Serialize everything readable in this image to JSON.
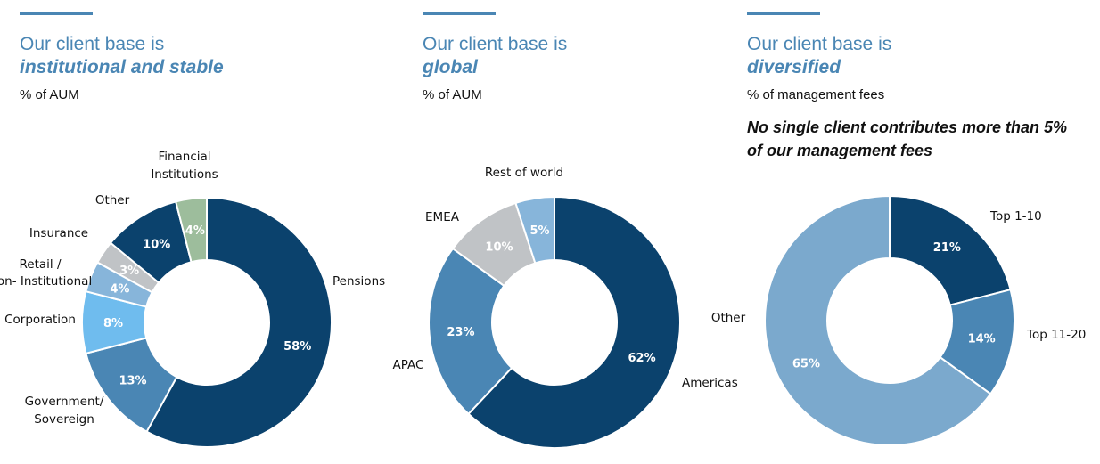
{
  "panels": [
    {
      "title_line1": "Our client base is",
      "title_line2": "institutional and stable",
      "subtitle": "% of AUM"
    },
    {
      "title_line1": "Our client base is",
      "title_line2": "global",
      "subtitle": "% of AUM"
    },
    {
      "title_line1": "Our client base is",
      "title_line2": "diversified",
      "subtitle": "% of management fees",
      "note_parts": [
        "No single client contributes more than ",
        "5%",
        " of our management fees"
      ]
    }
  ],
  "colors": {
    "accent": "#4a86b4",
    "dark_navy": "#0b426d",
    "mid_blue": "#4a86b4",
    "light_blue": "#6fbcee",
    "pale_blue": "#87b5da",
    "gray": "#c0c3c6",
    "sage": "#9dbd9c"
  },
  "chart_data": [
    {
      "type": "pie",
      "title": "Our client base is institutional and stable",
      "unit": "% of AUM",
      "labels": [
        "Pensions",
        "Government/ Sovereign",
        "Corporation",
        "Retail / Non- Institutional",
        "Insurance",
        "Other",
        "Financial Institutions"
      ],
      "values": [
        58,
        13,
        8,
        4,
        3,
        10,
        4
      ],
      "value_labels": [
        "58%",
        "13%",
        "8%",
        "4%",
        "3%",
        "10%",
        "4%"
      ],
      "colors": [
        "#0b426d",
        "#4a86b4",
        "#6fbcee",
        "#87b5da",
        "#c0c3c6",
        "#0b426d",
        "#9dbd9c"
      ]
    },
    {
      "type": "pie",
      "title": "Our client base is global",
      "unit": "% of AUM",
      "labels": [
        "Americas",
        "APAC",
        "EMEA",
        "Rest of world"
      ],
      "values": [
        62,
        23,
        10,
        5
      ],
      "value_labels": [
        "62%",
        "23%",
        "10%",
        "5%"
      ],
      "colors": [
        "#0b426d",
        "#4a86b4",
        "#c0c3c6",
        "#87b5da"
      ]
    },
    {
      "type": "pie",
      "title": "Our client base is diversified",
      "unit": "% of management fees",
      "labels": [
        "Top 1-10",
        "Top 11-20",
        "Other"
      ],
      "values": [
        21,
        14,
        65
      ],
      "value_labels": [
        "21%",
        "14%",
        "65%"
      ],
      "colors": [
        "#0b426d",
        "#4a86b4",
        "#7ba9cd"
      ]
    }
  ]
}
